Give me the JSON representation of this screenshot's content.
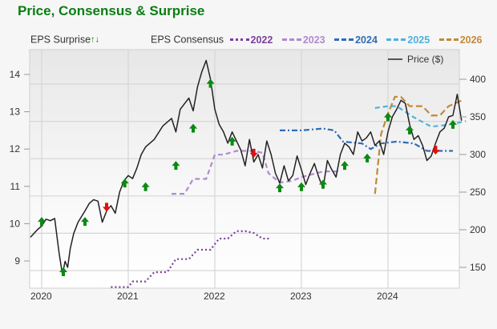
{
  "title": "Price, Consensus & Surprise",
  "legend": {
    "surprise_label": "EPS Surprise",
    "up_glyph": "🡅",
    "down_glyph": "🡇",
    "consensus_label": "EPS Consensus",
    "years": [
      {
        "label": "2022",
        "color": "#7a3f9d",
        "style": "dotted"
      },
      {
        "label": "2023",
        "color": "#b08ad0",
        "style": "dashed"
      },
      {
        "label": "2024",
        "color": "#2f6db5",
        "style": "dashdot"
      },
      {
        "label": "2025",
        "color": "#4fb0de",
        "style": "dashed"
      },
      {
        "label": "2026",
        "color": "#c08a3a",
        "style": "dashed"
      }
    ],
    "price_label": "Price ($)"
  },
  "colors": {
    "title": "#0a7d14",
    "price": "#222222",
    "surprise_up": "#0a8a10",
    "surprise_down": "#e01010",
    "grid": "#d4d4d4",
    "plot_bg_top": "#e9e9e9",
    "plot_bg_bottom": "#ffffff"
  },
  "chart_data": {
    "type": "line",
    "title": "Price, Consensus & Surprise",
    "xlabel": "",
    "ylabel_left": "EPS Consensus",
    "ylabel_right": "Price ($)",
    "x_ticks": [
      "2020",
      "2021",
      "2022",
      "2023",
      "2024"
    ],
    "y_left_ticks": [
      9,
      10,
      11,
      12,
      13,
      14
    ],
    "y_left_range": [
      8.3,
      14.7
    ],
    "y_right_ticks": [
      150,
      200,
      250,
      300,
      350,
      400
    ],
    "y_right_range": [
      123,
      437
    ],
    "x_range": [
      "2019-11",
      "2024-11"
    ],
    "grid": true,
    "legend_position": "top",
    "price_series": {
      "name": "Price ($)",
      "x": [
        2019.87,
        2019.95,
        2020.0,
        2020.05,
        2020.1,
        2020.15,
        2020.2,
        2020.24,
        2020.27,
        2020.3,
        2020.33,
        2020.37,
        2020.42,
        2020.5,
        2020.55,
        2020.6,
        2020.65,
        2020.7,
        2020.75,
        2020.8,
        2020.85,
        2020.9,
        2020.95,
        2021.0,
        2021.05,
        2021.1,
        2021.15,
        2021.2,
        2021.3,
        2021.4,
        2021.5,
        2021.55,
        2021.6,
        2021.7,
        2021.75,
        2021.8,
        2021.85,
        2021.9,
        2021.95,
        2022.0,
        2022.05,
        2022.1,
        2022.15,
        2022.2,
        2022.25,
        2022.3,
        2022.35,
        2022.4,
        2022.45,
        2022.5,
        2022.55,
        2022.6,
        2022.65,
        2022.7,
        2022.75,
        2022.8,
        2022.85,
        2022.9,
        2022.95,
        2023.0,
        2023.05,
        2023.1,
        2023.15,
        2023.2,
        2023.25,
        2023.3,
        2023.35,
        2023.4,
        2023.45,
        2023.5,
        2023.55,
        2023.6,
        2023.65,
        2023.7,
        2023.75,
        2023.8,
        2023.85,
        2023.9,
        2023.95,
        2024.0,
        2024.05,
        2024.1,
        2024.15,
        2024.2,
        2024.25,
        2024.3,
        2024.35,
        2024.4,
        2024.45,
        2024.5,
        2024.55,
        2024.6,
        2024.65,
        2024.7,
        2024.75,
        2024.8,
        2024.85
      ],
      "values": [
        190,
        200,
        205,
        214,
        212,
        215,
        170,
        140,
        158,
        150,
        175,
        195,
        210,
        225,
        235,
        240,
        238,
        210,
        225,
        232,
        222,
        250,
        265,
        272,
        268,
        282,
        300,
        310,
        320,
        338,
        348,
        330,
        360,
        375,
        358,
        390,
        410,
        425,
        400,
        360,
        340,
        330,
        315,
        330,
        318,
        306,
        285,
        320,
        290,
        300,
        282,
        318,
        300,
        275,
        262,
        285,
        265,
        272,
        298,
        280,
        260,
        275,
        288,
        270,
        255,
        292,
        280,
        270,
        300,
        315,
        310,
        300,
        330,
        318,
        322,
        330,
        312,
        318,
        300,
        330,
        350,
        360,
        372,
        368,
        340,
        320,
        325,
        312,
        292,
        298,
        315,
        330,
        335,
        350,
        352,
        380,
        345
      ]
    },
    "eps_surprises": [
      {
        "x": 2020.0,
        "y": 10.05,
        "dir": "up"
      },
      {
        "x": 2020.25,
        "y": 8.7,
        "dir": "up"
      },
      {
        "x": 2020.5,
        "y": 10.05,
        "dir": "up"
      },
      {
        "x": 2020.75,
        "y": 10.45,
        "dir": "down"
      },
      {
        "x": 2020.96,
        "y": 11.08,
        "dir": "up"
      },
      {
        "x": 2021.2,
        "y": 10.98,
        "dir": "up"
      },
      {
        "x": 2021.55,
        "y": 11.55,
        "dir": "up"
      },
      {
        "x": 2021.75,
        "y": 12.55,
        "dir": "up"
      },
      {
        "x": 2021.95,
        "y": 13.75,
        "dir": "up"
      },
      {
        "x": 2022.2,
        "y": 12.2,
        "dir": "up"
      },
      {
        "x": 2022.45,
        "y": 11.9,
        "dir": "down"
      },
      {
        "x": 2022.75,
        "y": 10.95,
        "dir": "up"
      },
      {
        "x": 2023.0,
        "y": 10.98,
        "dir": "up"
      },
      {
        "x": 2023.25,
        "y": 11.05,
        "dir": "up"
      },
      {
        "x": 2023.5,
        "y": 11.55,
        "dir": "up"
      },
      {
        "x": 2023.76,
        "y": 11.75,
        "dir": "up"
      },
      {
        "x": 2024.0,
        "y": 12.85,
        "dir": "up"
      },
      {
        "x": 2024.25,
        "y": 12.5,
        "dir": "up"
      },
      {
        "x": 2024.55,
        "y": 11.98,
        "dir": "down"
      },
      {
        "x": 2024.75,
        "y": 12.65,
        "dir": "up"
      }
    ],
    "consensus_series": [
      {
        "name": "2022",
        "x": [
          2020.8,
          2021.0,
          2021.05,
          2021.2,
          2021.3,
          2021.45,
          2021.55,
          2021.7,
          2021.8,
          2021.95,
          2022.05,
          2022.15,
          2022.25,
          2022.35,
          2022.45,
          2022.55,
          2022.65
        ],
        "values": [
          8.3,
          8.3,
          8.45,
          8.45,
          8.7,
          8.7,
          9.05,
          9.05,
          9.3,
          9.3,
          9.6,
          9.6,
          9.8,
          9.8,
          9.75,
          9.6,
          9.6
        ]
      },
      {
        "name": "2023",
        "x": [
          2021.5,
          2021.65,
          2021.75,
          2021.9,
          2022.0,
          2022.1,
          2022.25,
          2022.45,
          2022.55,
          2022.62,
          2022.75,
          2022.9,
          2023.0,
          2023.25,
          2023.45
        ],
        "values": [
          10.8,
          10.8,
          11.2,
          11.2,
          11.85,
          11.85,
          11.95,
          11.95,
          11.9,
          11.35,
          11.1,
          11.15,
          11.25,
          11.4,
          11.4
        ]
      },
      {
        "name": "2024",
        "x": [
          2022.75,
          2023.0,
          2023.25,
          2023.38,
          2023.48,
          2023.7,
          2023.8,
          2023.92,
          2024.1,
          2024.3,
          2024.45,
          2024.6,
          2024.75
        ],
        "values": [
          12.5,
          12.5,
          12.55,
          12.5,
          12.2,
          12.15,
          12.0,
          12.15,
          12.2,
          12.15,
          11.95,
          11.95,
          11.95
        ]
      },
      {
        "name": "2025",
        "x": [
          2023.85,
          2024.0,
          2024.1,
          2024.3,
          2024.5,
          2024.7,
          2024.9
        ],
        "values": [
          13.1,
          13.15,
          13.15,
          12.85,
          12.6,
          12.65,
          12.75
        ]
      },
      {
        "name": "2026",
        "x": [
          2023.85,
          2023.92,
          2024.0,
          2024.08,
          2024.15,
          2024.25,
          2024.4,
          2024.5,
          2024.6,
          2024.7,
          2024.85
        ],
        "values": [
          10.8,
          12.4,
          12.95,
          13.4,
          13.4,
          13.15,
          13.15,
          12.9,
          12.9,
          13.15,
          13.3
        ]
      }
    ]
  }
}
